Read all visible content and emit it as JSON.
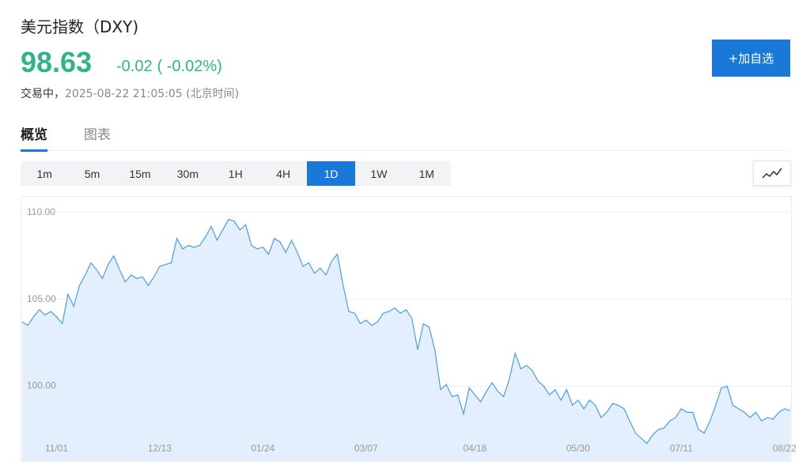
{
  "header": {
    "title": "美元指数（DXY)",
    "price": "98.63",
    "change": "-0.02",
    "change_percent": "( -0.02%)",
    "status": "交易中，",
    "timestamp": "2025-08-22 21:05:05",
    "timezone": "(北京时间)",
    "add_button": "+加自选"
  },
  "tabs": {
    "items": [
      "概览",
      "图表"
    ],
    "active": 0
  },
  "intervals": {
    "items": [
      "1m",
      "5m",
      "15m",
      "30m",
      "1H",
      "4H",
      "1D",
      "1W",
      "1M"
    ],
    "active": 6
  },
  "chart_data": {
    "type": "area",
    "color": "#4a9de8",
    "fill": "#e3effc",
    "grid": true,
    "values": [
      103.7,
      103.5,
      104.0,
      104.4,
      104.1,
      104.3,
      104.0,
      103.6,
      105.3,
      104.6,
      105.8,
      106.4,
      107.1,
      106.7,
      106.2,
      107.0,
      107.5,
      106.7,
      106.0,
      106.4,
      106.2,
      106.3,
      105.8,
      106.3,
      106.9,
      107.0,
      107.1,
      108.5,
      107.9,
      108.1,
      108.0,
      108.1,
      108.6,
      109.2,
      108.4,
      109.0,
      109.6,
      109.5,
      109.0,
      109.3,
      108.1,
      107.9,
      108.0,
      107.6,
      108.5,
      108.3,
      107.7,
      108.4,
      107.7,
      106.9,
      107.1,
      106.5,
      106.8,
      106.4,
      107.2,
      107.6,
      105.8,
      104.3,
      104.2,
      103.6,
      103.8,
      103.5,
      103.7,
      104.2,
      104.3,
      104.5,
      104.2,
      104.4,
      103.9,
      102.1,
      103.6,
      103.4,
      102.1,
      99.8,
      100.1,
      99.4,
      99.5,
      98.4,
      99.9,
      99.5,
      99.1,
      99.7,
      100.2,
      99.7,
      99.4,
      100.4,
      101.9,
      101.0,
      101.2,
      100.9,
      100.3,
      100.0,
      99.5,
      99.8,
      99.2,
      99.8,
      98.9,
      99.2,
      98.7,
      99.2,
      98.9,
      98.2,
      98.5,
      99.0,
      98.9,
      98.7,
      98.0,
      97.3,
      97.0,
      96.7,
      97.2,
      97.5,
      97.6,
      98.0,
      98.2,
      98.7,
      98.5,
      98.5,
      97.5,
      97.3,
      98.0,
      98.9,
      99.9,
      100.0,
      98.9,
      98.7,
      98.5,
      98.2,
      98.5,
      98.0,
      98.2,
      98.1,
      98.5,
      98.7,
      98.6
    ],
    "xlim": [
      0,
      134
    ],
    "xticks": [
      {
        "value": 6,
        "label": "11/01"
      },
      {
        "value": 24,
        "label": "12/13"
      },
      {
        "value": 42,
        "label": "01/24"
      },
      {
        "value": 60,
        "label": "03/07"
      },
      {
        "value": 79,
        "label": "04/18"
      },
      {
        "value": 97,
        "label": "05/30"
      },
      {
        "value": 115,
        "label": "07/11"
      },
      {
        "value": 133,
        "label": "08/22"
      }
    ],
    "ylim": [
      95.7,
      110.9
    ],
    "yticks": [
      {
        "value": 100,
        "label": "100.00"
      },
      {
        "value": 105,
        "label": "105.00"
      },
      {
        "value": 110,
        "label": "110.00"
      }
    ]
  }
}
